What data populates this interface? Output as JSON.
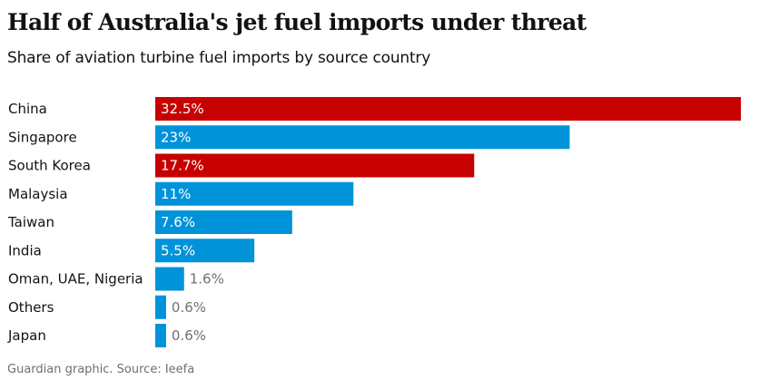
{
  "header": {
    "title": "Half of Australia's jet fuel imports under threat",
    "subtitle": "Share of aviation turbine fuel imports by source country"
  },
  "footer": {
    "source": "Guardian graphic. Source: Ieefa"
  },
  "colors": {
    "threat": "#c70000",
    "other": "#0093d9",
    "label_inside": "#ffffff",
    "label_outside": "#707070"
  },
  "chart_data": {
    "type": "bar",
    "orientation": "horizontal",
    "title": "Half of Australia's jet fuel imports under threat",
    "subtitle": "Share of aviation turbine fuel imports by source country",
    "xlabel": "",
    "ylabel": "",
    "xlim": [
      0,
      32.5
    ],
    "grid": false,
    "unit": "%",
    "categories": [
      "China",
      "Singapore",
      "South Korea",
      "Malaysia",
      "Taiwan",
      "India",
      "Oman, UAE, Nigeria",
      "Others",
      "Japan"
    ],
    "values": [
      32.5,
      23,
      17.7,
      11,
      7.6,
      5.5,
      1.6,
      0.6,
      0.6
    ],
    "value_labels": [
      "32.5%",
      "23%",
      "17.7%",
      "11%",
      "7.6%",
      "5.5%",
      "1.6%",
      "0.6%",
      "0.6%"
    ],
    "highlight": [
      true,
      false,
      true,
      false,
      false,
      false,
      false,
      false,
      false
    ]
  }
}
